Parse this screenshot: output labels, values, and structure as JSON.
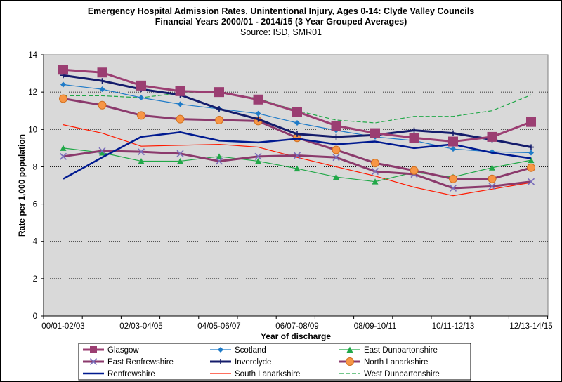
{
  "chart_data": {
    "type": "line",
    "title": "Emergency Hospital Admission Rates, Unintentional Injury, Ages 0-14: Clyde Valley Councils",
    "subtitle": "Financial Years 2000/01 - 2014/15 (3 Year Grouped Averages)",
    "source": "Source: ISD, SMR01",
    "xlabel": "Year of discharge",
    "ylabel": "Rate per 1,000 population",
    "ylim": [
      0,
      14
    ],
    "y_ticks": [
      "0",
      "2",
      "4",
      "6",
      "8",
      "10",
      "12",
      "14"
    ],
    "y_tick_values": [
      0,
      2,
      4,
      6,
      8,
      10,
      12,
      14
    ],
    "x_tick_labels": [
      "00/01-02/03",
      "02/03-04/05",
      "04/05-06/07",
      "06/07-08/09",
      "08/09-10/11",
      "10/11-12/13",
      "12/13-14/15"
    ],
    "x_tick_positions": [
      0,
      2,
      4,
      6,
      8,
      10,
      12
    ],
    "gridlines": true,
    "legend_position": "bottom",
    "series": [
      {
        "name": "Glasgow",
        "color": "#9B3E72",
        "marker": "square",
        "values": [
          13.2,
          13.05,
          12.35,
          12.05,
          12.0,
          11.6,
          10.95,
          10.2,
          9.8,
          9.55,
          9.35,
          9.6,
          10.4
        ]
      },
      {
        "name": "Scotland",
        "color": "#1F7BC8",
        "marker": "diamond",
        "values": [
          12.4,
          12.15,
          11.7,
          11.35,
          11.1,
          10.85,
          10.35,
          9.95,
          9.6,
          9.4,
          8.95,
          8.8,
          8.75
        ]
      },
      {
        "name": "East Dunbartonshire",
        "color": "#21A848",
        "marker": "triangle",
        "values": [
          9.0,
          8.75,
          8.3,
          8.3,
          8.55,
          8.3,
          7.9,
          7.45,
          7.2,
          7.7,
          7.45,
          7.95,
          8.35
        ]
      },
      {
        "name": "East Renfrewshire",
        "color": "#8B3A6C",
        "marker": "x",
        "values": [
          8.55,
          8.85,
          8.8,
          8.7,
          8.3,
          8.55,
          8.6,
          8.5,
          7.75,
          7.6,
          6.85,
          6.95,
          7.2
        ]
      },
      {
        "name": "Inverclyde",
        "color": "#141C6B",
        "marker": "cross",
        "values": [
          12.9,
          12.6,
          12.15,
          11.85,
          11.1,
          10.55,
          9.75,
          9.6,
          9.7,
          9.95,
          9.8,
          9.45,
          9.05
        ]
      },
      {
        "name": "North Lanarkshire",
        "color": "#8B3A6C",
        "marker": "circle",
        "values": [
          11.65,
          11.3,
          10.75,
          10.55,
          10.5,
          10.45,
          9.55,
          8.9,
          8.2,
          7.8,
          7.35,
          7.35,
          7.95
        ]
      },
      {
        "name": "Renfrewshire",
        "color": "#001A90",
        "marker": "none",
        "values": [
          7.35,
          8.5,
          9.6,
          9.85,
          9.4,
          9.3,
          9.5,
          9.2,
          9.35,
          9.0,
          9.2,
          8.75,
          8.45
        ]
      },
      {
        "name": "South Lanarkshire",
        "color": "#FF1A00",
        "marker": "none",
        "values": [
          10.25,
          9.8,
          9.1,
          9.15,
          9.2,
          9.05,
          8.5,
          8.0,
          7.5,
          6.9,
          6.45,
          6.8,
          7.15
        ]
      },
      {
        "name": "West Dunbartonshire",
        "color": "#21A848",
        "marker": "none",
        "dashed": true,
        "values": [
          11.8,
          11.8,
          11.7,
          11.95,
          12.0,
          11.65,
          11.0,
          10.5,
          10.35,
          10.7,
          10.7,
          11.0,
          11.85
        ]
      }
    ]
  }
}
